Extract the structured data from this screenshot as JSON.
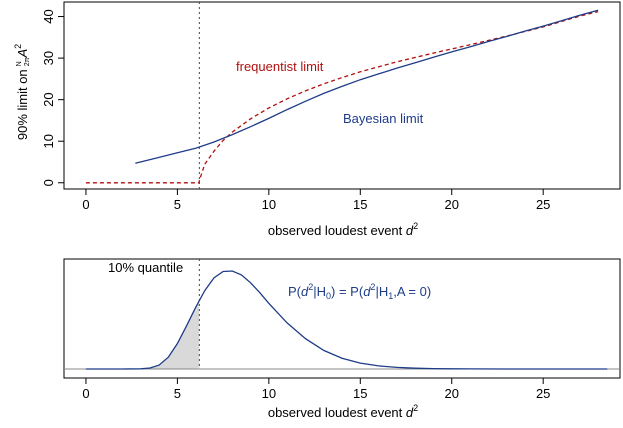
{
  "chart_data": [
    {
      "type": "line",
      "xlabel_main": "observed loudest event ",
      "xlabel_sym": "d",
      "xlabel_sup": "2",
      "ylabel": "90% limit on",
      "ylabel_frac_num": "N",
      "ylabel_frac_den": "2π",
      "ylabel_sym": "A",
      "ylabel_sup": "2",
      "xlim": [
        -1.2,
        29.2
      ],
      "ylim": [
        -1.5,
        43.5
      ],
      "xticks": [
        0,
        5,
        10,
        15,
        20,
        25
      ],
      "yticks": [
        0,
        10,
        20,
        30,
        40
      ],
      "vline_x": 6.2,
      "series": [
        {
          "name": "frequentist limit",
          "color": "#b01010",
          "dash": true,
          "points": [
            [
              0,
              0
            ],
            [
              6.2,
              0
            ],
            [
              6.2,
              0.5
            ],
            [
              6.5,
              4.5
            ],
            [
              7,
              7.6
            ],
            [
              7.5,
              10.2
            ],
            [
              8,
              12.2
            ],
            [
              9,
              15.4
            ],
            [
              10,
              18
            ],
            [
              11,
              20.2
            ],
            [
              12,
              22.1
            ],
            [
              13,
              23.8
            ],
            [
              14,
              25.3
            ],
            [
              15,
              26.7
            ],
            [
              17,
              29.1
            ],
            [
              19,
              31.2
            ],
            [
              21,
              33.2
            ],
            [
              23,
              35.3
            ],
            [
              25,
              37.5
            ],
            [
              27,
              40.1
            ],
            [
              28,
              41.2
            ]
          ]
        },
        {
          "name": "Bayesian limit",
          "color": "#1f3c88",
          "dash": false,
          "points": [
            [
              2.7,
              4.7
            ],
            [
              4,
              6.1
            ],
            [
              5,
              7.2
            ],
            [
              6,
              8.3
            ],
            [
              7,
              9.8
            ],
            [
              8,
              11.6
            ],
            [
              9,
              13.5
            ],
            [
              10,
              15.5
            ],
            [
              11,
              17.6
            ],
            [
              12,
              19.6
            ],
            [
              13,
              21.5
            ],
            [
              14,
              23.2
            ],
            [
              15,
              24.8
            ],
            [
              16,
              26.2
            ],
            [
              17,
              27.6
            ],
            [
              18,
              28.9
            ],
            [
              19,
              30.2
            ],
            [
              20,
              31.5
            ],
            [
              21,
              32.7
            ],
            [
              22,
              34
            ],
            [
              23,
              35.2
            ],
            [
              24,
              36.5
            ],
            [
              25,
              37.7
            ],
            [
              26,
              39
            ],
            [
              27,
              40.3
            ],
            [
              28,
              41.5
            ]
          ]
        }
      ],
      "annotations": {
        "frequentist_label": "frequentist limit",
        "bayesian_label": "Bayesian limit"
      }
    },
    {
      "type": "area",
      "xlabel_main": "observed loudest event ",
      "xlabel_sym": "d",
      "xlabel_sup": "2",
      "xlim": [
        -1.2,
        29.2
      ],
      "xticks": [
        0,
        5,
        10,
        15,
        20,
        25
      ],
      "vline_x": 6.2,
      "shaded_below_x": 6.2,
      "quantile_label": "10% quantile",
      "formula": {
        "p1": "P(",
        "d": "d",
        "sup2": "2",
        "bar_h": "|H",
        "sub0": "0",
        "eq": ") = P(",
        "bar_h1": "|H",
        "sub1": "1",
        "tail": ",A = 0)"
      },
      "curve_color": "#1f3c88",
      "points": [
        [
          0,
          0
        ],
        [
          2,
          0
        ],
        [
          3,
          0.002
        ],
        [
          3.5,
          0.01
        ],
        [
          4,
          0.04
        ],
        [
          4.5,
          0.12
        ],
        [
          5,
          0.26
        ],
        [
          5.5,
          0.44
        ],
        [
          6,
          0.63
        ],
        [
          6.5,
          0.8
        ],
        [
          7,
          0.93
        ],
        [
          7.5,
          0.995
        ],
        [
          8,
          1.0
        ],
        [
          8.5,
          0.96
        ],
        [
          9,
          0.88
        ],
        [
          9.5,
          0.78
        ],
        [
          10,
          0.67
        ],
        [
          11,
          0.47
        ],
        [
          12,
          0.31
        ],
        [
          13,
          0.19
        ],
        [
          14,
          0.11
        ],
        [
          15,
          0.06
        ],
        [
          16,
          0.032
        ],
        [
          17,
          0.016
        ],
        [
          18,
          0.008
        ],
        [
          19,
          0.004
        ],
        [
          20,
          0.002
        ],
        [
          21,
          0.001
        ],
        [
          23,
          0.0002
        ],
        [
          28.5,
          0
        ]
      ]
    }
  ]
}
